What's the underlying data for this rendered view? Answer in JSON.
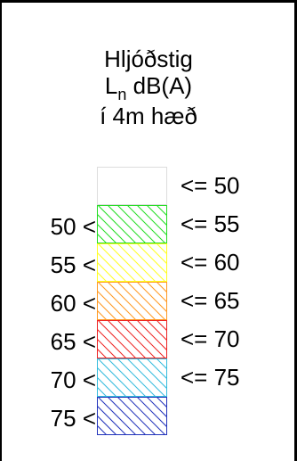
{
  "title": {
    "line1": "Hljóðstig",
    "line2_main": "L",
    "line2_sub": "n",
    "line2_rest": " dB(A)",
    "line3": "í 4m hæð"
  },
  "legend": {
    "bins": [
      {
        "lower": "",
        "upper": "<= 50",
        "color": "#ffffff",
        "hatch": false
      },
      {
        "lower": "50 <",
        "upper": "<= 55",
        "color": "#22dd22",
        "hatch": true
      },
      {
        "lower": "55 <",
        "upper": "<= 60",
        "color": "#ffff22",
        "hatch": true
      },
      {
        "lower": "60 <",
        "upper": "<= 65",
        "color": "#ff9922",
        "hatch": true
      },
      {
        "lower": "65 <",
        "upper": "<= 70",
        "color": "#ee2222",
        "hatch": true
      },
      {
        "lower": "70 <",
        "upper": "<= 75",
        "color": "#33bbdd",
        "hatch": true
      },
      {
        "lower": "75 <",
        "upper": "",
        "color": "#2233bb",
        "hatch": true
      }
    ]
  }
}
